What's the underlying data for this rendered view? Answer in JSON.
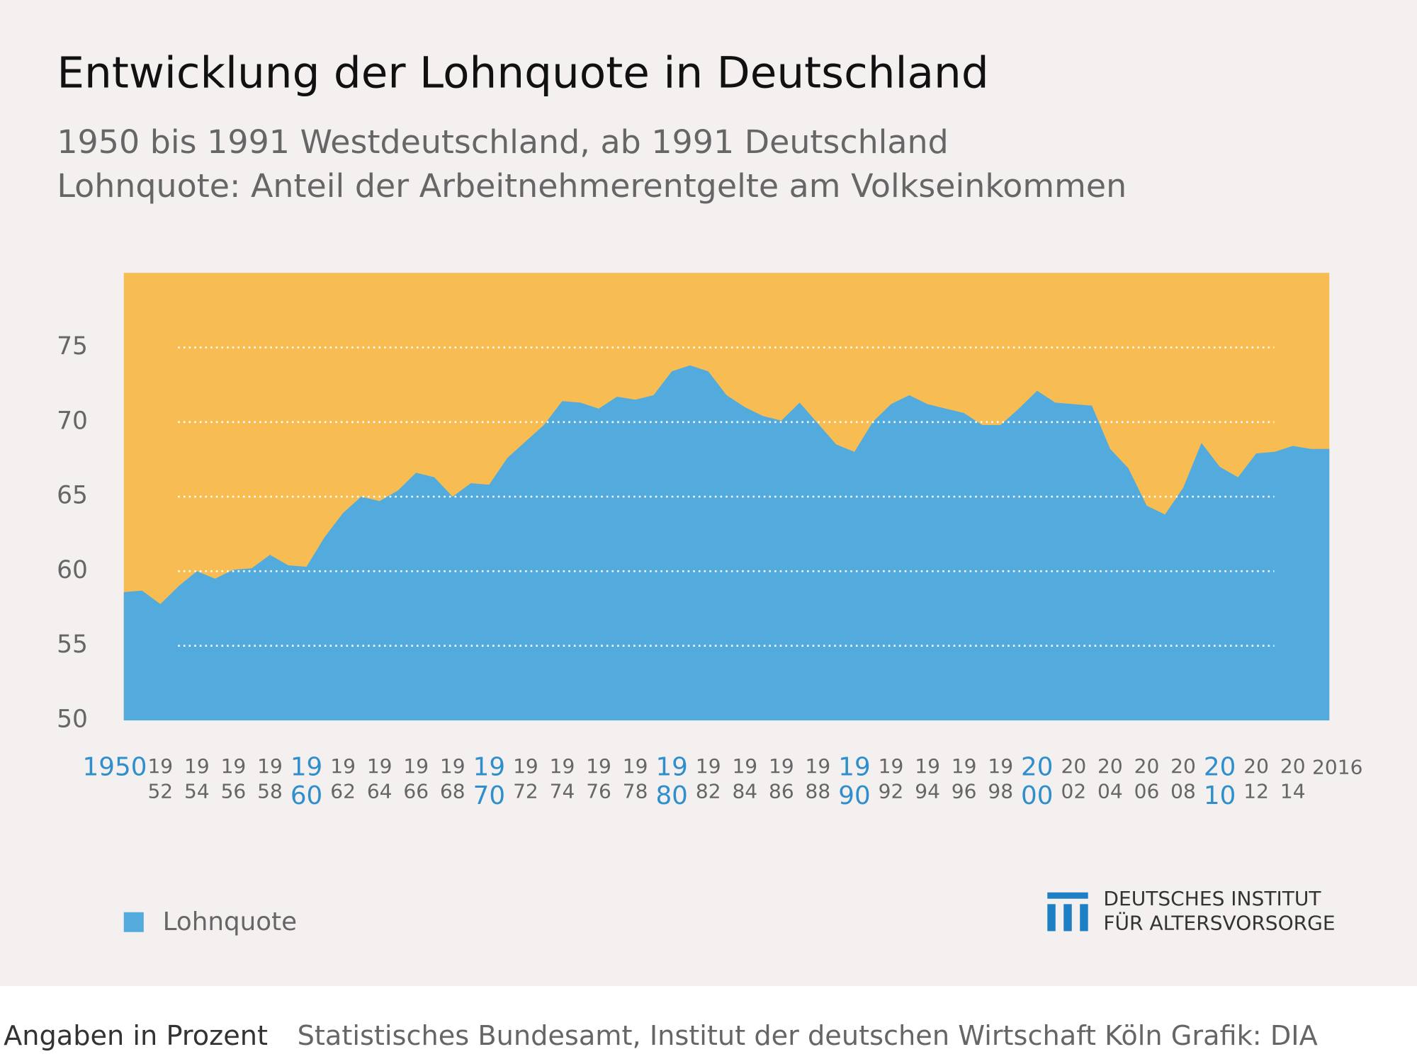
{
  "chart_data": {
    "type": "area",
    "title": "Entwicklung der Lohnquote in Deutschland",
    "subtitle": [
      "1950 bis 1991 Westdeutschland, ab 1991 Deutschland",
      "Lohnquote: Anteil der Arbeitnehmerentgelte am Volkseinkommen"
    ],
    "x": [
      1950,
      1951,
      1952,
      1953,
      1954,
      1955,
      1956,
      1957,
      1958,
      1959,
      1960,
      1961,
      1962,
      1963,
      1964,
      1965,
      1966,
      1967,
      1968,
      1969,
      1970,
      1971,
      1972,
      1973,
      1974,
      1975,
      1976,
      1977,
      1978,
      1979,
      1980,
      1981,
      1982,
      1983,
      1984,
      1985,
      1986,
      1987,
      1988,
      1989,
      1990,
      1991,
      1992,
      1993,
      1994,
      1995,
      1996,
      1997,
      1998,
      1999,
      2000,
      2001,
      2002,
      2003,
      2004,
      2005,
      2006,
      2007,
      2008,
      2009,
      2010,
      2011,
      2012,
      2013,
      2014,
      2015,
      2016
    ],
    "series": [
      {
        "name": "Lohnquote",
        "color": "#52abdc",
        "values": [
          58.6,
          58.7,
          57.8,
          59.0,
          60.0,
          59.5,
          60.1,
          60.2,
          61.1,
          60.4,
          60.3,
          62.3,
          63.9,
          65.0,
          64.7,
          65.4,
          66.6,
          66.3,
          65.0,
          65.9,
          65.8,
          67.6,
          68.7,
          69.8,
          71.4,
          71.3,
          70.9,
          71.7,
          71.5,
          71.8,
          73.4,
          73.8,
          73.4,
          71.8,
          71.0,
          70.4,
          70.1,
          71.3,
          69.9,
          68.5,
          68.0,
          70.0,
          71.2,
          71.8,
          71.2,
          70.9,
          70.6,
          69.8,
          69.8,
          70.9,
          72.1,
          71.3,
          71.2,
          71.1,
          68.2,
          66.9,
          64.4,
          63.8,
          65.6,
          68.6,
          67.0,
          66.3,
          67.9,
          68.0,
          68.4,
          68.2,
          68.2
        ]
      }
    ],
    "plot_background": "#f8bd52",
    "xlim": [
      1950,
      2016
    ],
    "xticks": [
      1950,
      {
        "value": 1952,
        "label": [
          "19",
          "52"
        ]
      },
      {
        "value": 1954,
        "label": [
          "19",
          "54"
        ]
      },
      {
        "value": 1956,
        "label": [
          "19",
          "56"
        ]
      },
      {
        "value": 1958,
        "label": [
          "19",
          "58"
        ]
      },
      {
        "value": 1960,
        "label": [
          "19",
          "60"
        ]
      },
      {
        "value": 1962,
        "label": [
          "19",
          "62"
        ]
      },
      {
        "value": 1964,
        "label": [
          "19",
          "64"
        ]
      },
      {
        "value": 1966,
        "label": [
          "19",
          "66"
        ]
      },
      {
        "value": 1968,
        "label": [
          "19",
          "68"
        ]
      },
      {
        "value": 1970,
        "label": [
          "19",
          "70"
        ]
      },
      {
        "value": 1972,
        "label": [
          "19",
          "72"
        ]
      },
      {
        "value": 1974,
        "label": [
          "19",
          "74"
        ]
      },
      {
        "value": 1976,
        "label": [
          "19",
          "76"
        ]
      },
      {
        "value": 1978,
        "label": [
          "19",
          "78"
        ]
      },
      {
        "value": 1980,
        "label": [
          "19",
          "80"
        ]
      },
      {
        "value": 1982,
        "label": [
          "19",
          "82"
        ]
      },
      {
        "value": 1984,
        "label": [
          "19",
          "84"
        ]
      },
      {
        "value": 1986,
        "label": [
          "19",
          "86"
        ]
      },
      {
        "value": 1988,
        "label": [
          "19",
          "88"
        ]
      },
      {
        "value": 1990,
        "label": [
          "19",
          "90"
        ]
      },
      {
        "value": 1992,
        "label": [
          "19",
          "92"
        ]
      },
      {
        "value": 1994,
        "label": [
          "19",
          "94"
        ]
      },
      {
        "value": 1996,
        "label": [
          "19",
          "96"
        ]
      },
      {
        "value": 1998,
        "label": [
          "19",
          "98"
        ]
      },
      {
        "value": 2000,
        "label": [
          "20",
          "00"
        ]
      },
      {
        "value": 2002,
        "label": [
          "20",
          "02"
        ]
      },
      {
        "value": 2004,
        "label": [
          "20",
          "04"
        ]
      },
      {
        "value": 2006,
        "label": [
          "20",
          "06"
        ]
      },
      {
        "value": 2008,
        "label": [
          "20",
          "08"
        ]
      },
      {
        "value": 2010,
        "label": [
          "20",
          "10"
        ]
      },
      {
        "value": 2012,
        "label": [
          "20",
          "12"
        ]
      },
      {
        "value": 2014,
        "label": [
          "20",
          "14"
        ]
      },
      2016
    ],
    "ylim": [
      50,
      80
    ],
    "yticks": [
      50,
      55,
      60,
      65,
      70,
      75
    ],
    "grid": true,
    "legend": "bottom-left",
    "logo": [
      "DEUTSCHES INSTITUT",
      "FÜR ALTERSVORSORGE"
    ],
    "footer": [
      "Angaben in Prozent",
      "Statistisches Bundesamt, Institut der deutschen Wirtschaft Köln  Grafik: DIA"
    ]
  }
}
